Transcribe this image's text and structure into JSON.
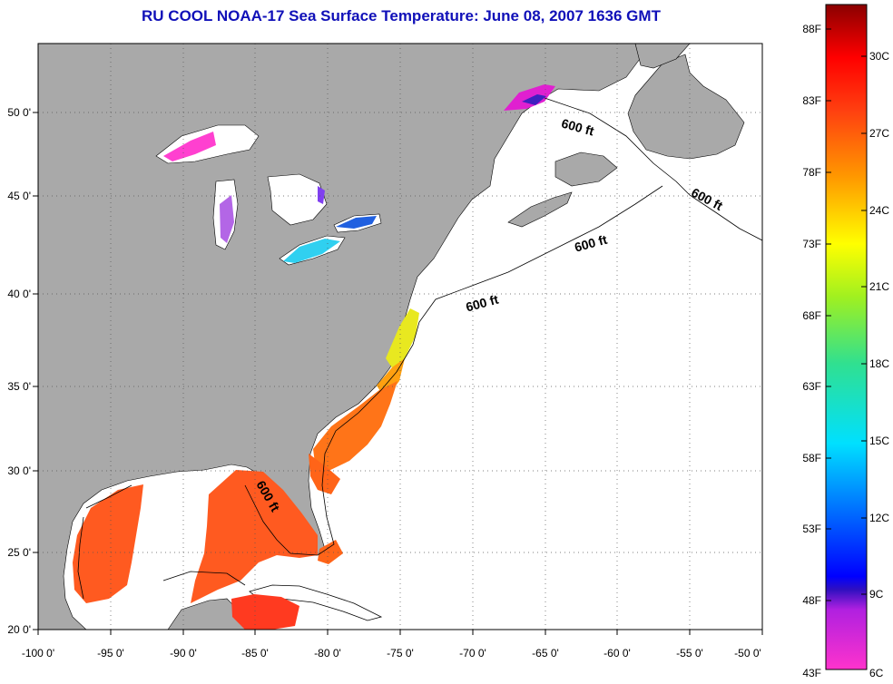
{
  "title": "RU COOL  NOAA-17  Sea Surface Temperature:  June 08, 2007 1636 GMT",
  "axes": {
    "x_ticks": [
      "-100 0'",
      "-95 0'",
      "-90 0'",
      "-85 0'",
      "-80 0'",
      "-75 0'",
      "-70 0'",
      "-65 0'",
      "-60 0'",
      "-55 0'",
      "-50 0'"
    ],
    "y_ticks": [
      "50 0'",
      "45 0'",
      "40 0'",
      "35 0'",
      "30 0'",
      "25 0'",
      "20 0'"
    ]
  },
  "contour_label": "600 ft",
  "colorbar": {
    "fahrenheit": [
      "88F",
      "83F",
      "78F",
      "73F",
      "68F",
      "63F",
      "58F",
      "53F",
      "48F",
      "43F"
    ],
    "celsius": [
      "30C",
      "27C",
      "24C",
      "21C",
      "18C",
      "15C",
      "12C",
      "9C",
      "6C"
    ]
  },
  "colors": {
    "land": "#a9a9a9",
    "ocean": "#ffffff",
    "title": "#1010b8"
  }
}
